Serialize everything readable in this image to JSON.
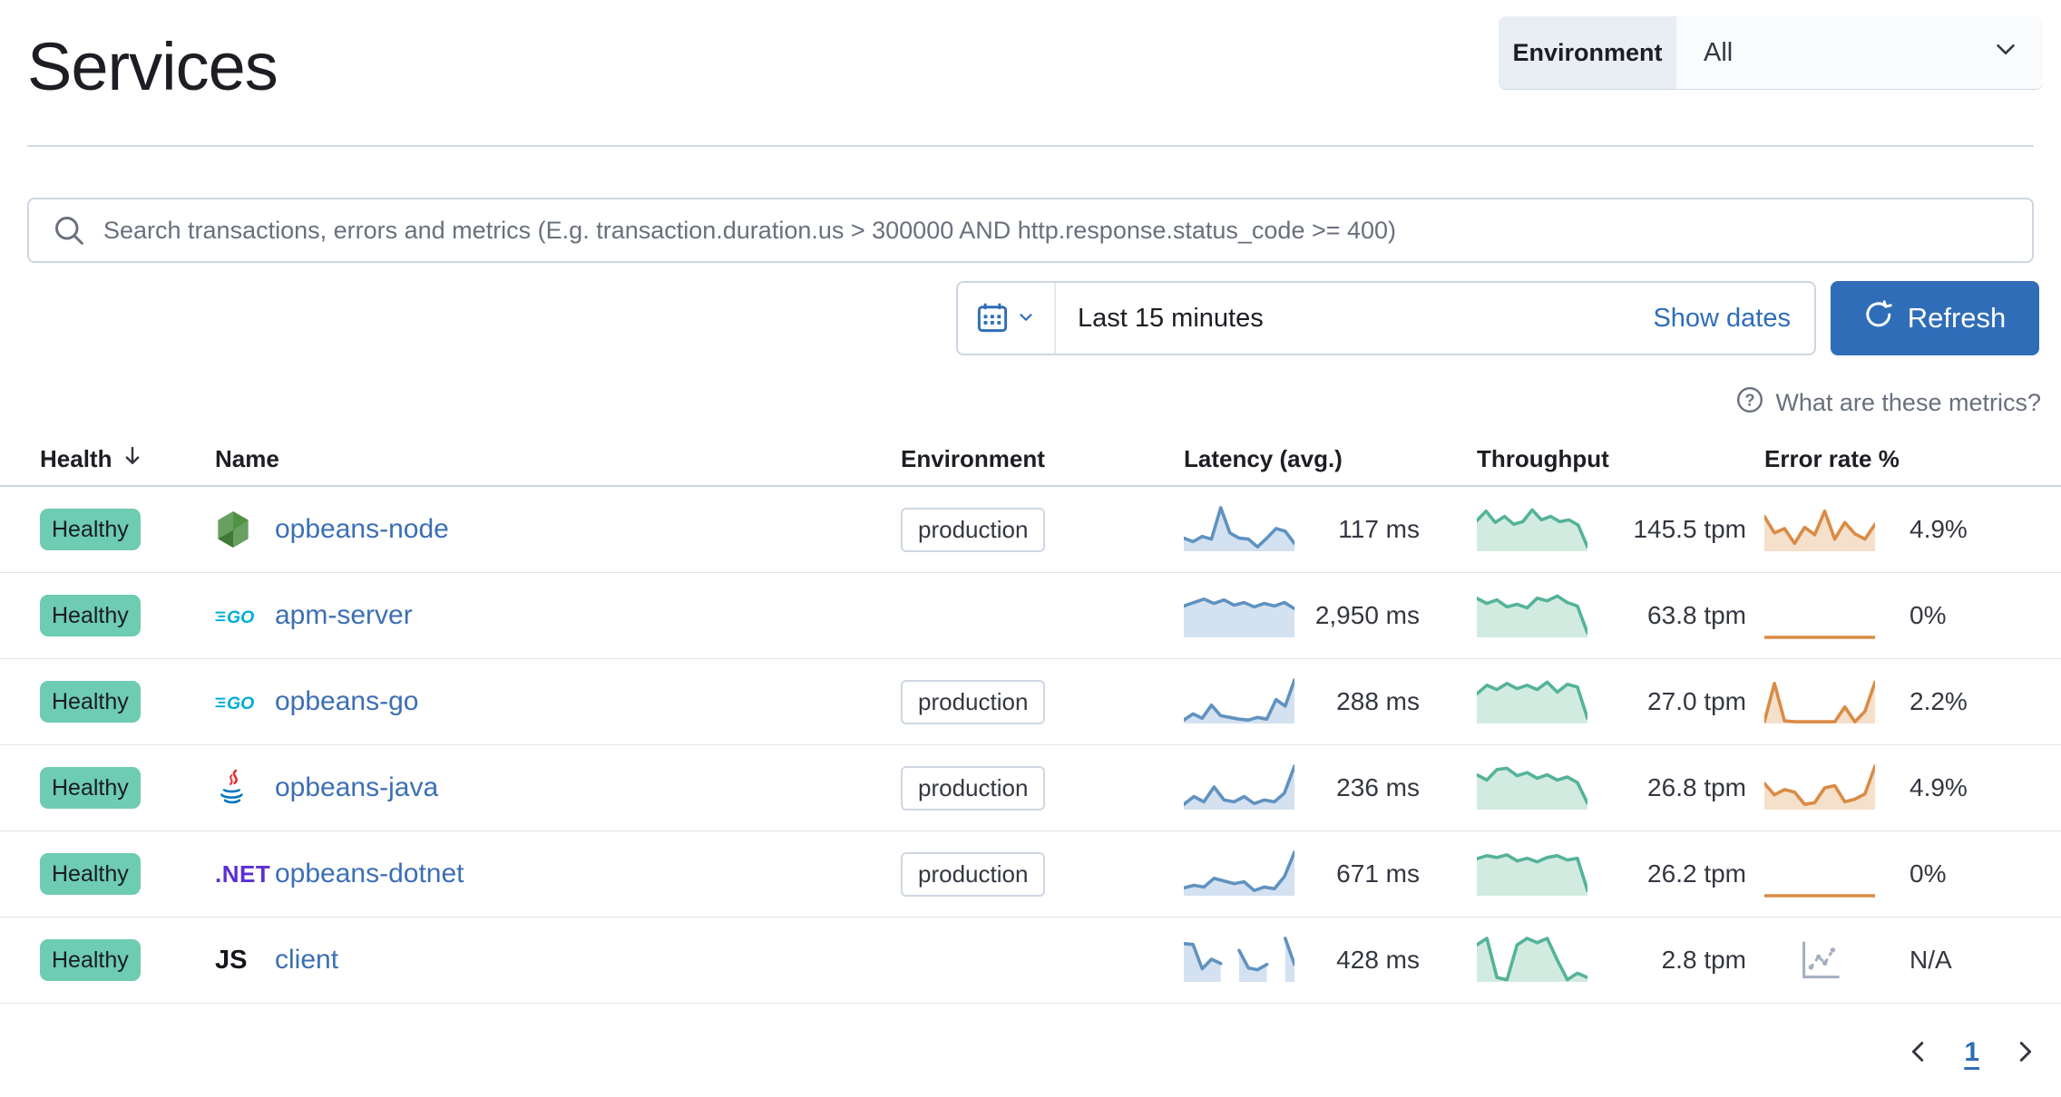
{
  "page": {
    "title": "Services"
  },
  "environment_filter": {
    "label": "Environment",
    "value": "All"
  },
  "search": {
    "placeholder": "Search transactions, errors and metrics (E.g. transaction.duration.us > 300000 AND http.response.status_code >= 400)"
  },
  "datepicker": {
    "value": "Last 15 minutes",
    "show_dates_label": "Show dates",
    "refresh_label": "Refresh"
  },
  "metrics_help": {
    "label": "What are these metrics?"
  },
  "table": {
    "columns": [
      "Health",
      "Name",
      "Environment",
      "Latency (avg.)",
      "Throughput",
      "Error rate %"
    ],
    "sorted_by": "Health",
    "sort_direction": "desc",
    "rows": [
      {
        "health": "Healthy",
        "icon": "nodejs",
        "name": "opbeans-node",
        "environment": "production",
        "latency": {
          "value": "117 ms",
          "spark": [
            0.3,
            0.22,
            0.34,
            0.28,
            1.0,
            0.42,
            0.3,
            0.28,
            0.1,
            0.3,
            0.52,
            0.46,
            0.18
          ]
        },
        "throughput": {
          "value": "145.5 tpm",
          "spark": [
            0.7,
            0.92,
            0.66,
            0.8,
            0.62,
            0.68,
            0.95,
            0.72,
            0.8,
            0.68,
            0.72,
            0.6,
            0.1
          ]
        },
        "error_rate": {
          "value": "4.9%",
          "spark": [
            0.8,
            0.42,
            0.52,
            0.18,
            0.55,
            0.38,
            0.92,
            0.28,
            0.66,
            0.4,
            0.28,
            0.62
          ]
        }
      },
      {
        "health": "Healthy",
        "icon": "go",
        "name": "apm-server",
        "environment": "",
        "latency": {
          "value": "2,950 ms",
          "spark": [
            0.72,
            0.8,
            0.88,
            0.78,
            0.86,
            0.74,
            0.8,
            0.7,
            0.78,
            0.72,
            0.8,
            0.66
          ]
        },
        "throughput": {
          "value": "63.8 tpm",
          "spark": [
            0.9,
            0.78,
            0.86,
            0.7,
            0.76,
            0.68,
            0.9,
            0.84,
            0.95,
            0.8,
            0.72,
            0.1
          ]
        },
        "error_rate": {
          "value": "0%",
          "spark": [
            0,
            0,
            0,
            0,
            0,
            0,
            0,
            0,
            0,
            0,
            0,
            0
          ]
        }
      },
      {
        "health": "Healthy",
        "icon": "go",
        "name": "opbeans-go",
        "environment": "production",
        "latency": {
          "value": "288 ms",
          "spark": [
            0.08,
            0.22,
            0.12,
            0.42,
            0.18,
            0.14,
            0.1,
            0.08,
            0.14,
            0.1,
            0.55,
            0.4,
            1.0
          ]
        },
        "throughput": {
          "value": "27.0 tpm",
          "spark": [
            0.68,
            0.88,
            0.78,
            0.92,
            0.8,
            0.88,
            0.78,
            0.95,
            0.72,
            0.9,
            0.84,
            0.12
          ]
        },
        "error_rate": {
          "value": "2.2%",
          "spark": [
            0.04,
            0.92,
            0.06,
            0.04,
            0.04,
            0.04,
            0.04,
            0.04,
            0.38,
            0.04,
            0.28,
            0.95
          ]
        }
      },
      {
        "health": "Healthy",
        "icon": "java",
        "name": "opbeans-java",
        "environment": "production",
        "latency": {
          "value": "236 ms",
          "spark": [
            0.12,
            0.3,
            0.18,
            0.52,
            0.22,
            0.18,
            0.3,
            0.14,
            0.22,
            0.18,
            0.38,
            1.0
          ]
        },
        "throughput": {
          "value": "26.8 tpm",
          "spark": [
            0.8,
            0.68,
            0.92,
            0.95,
            0.78,
            0.85,
            0.72,
            0.8,
            0.68,
            0.75,
            0.62,
            0.15
          ]
        },
        "error_rate": {
          "value": "4.9%",
          "spark": [
            0.6,
            0.34,
            0.46,
            0.4,
            0.12,
            0.16,
            0.5,
            0.55,
            0.18,
            0.24,
            0.36,
            1.0
          ]
        }
      },
      {
        "health": "Healthy",
        "icon": "dotnet",
        "name": "opbeans-dotnet",
        "environment": "production",
        "latency": {
          "value": "671 ms",
          "spark": [
            0.18,
            0.24,
            0.2,
            0.4,
            0.34,
            0.28,
            0.32,
            0.12,
            0.2,
            0.16,
            0.44,
            1.0
          ]
        },
        "throughput": {
          "value": "26.2 tpm",
          "spark": [
            0.85,
            0.92,
            0.88,
            0.94,
            0.8,
            0.86,
            0.78,
            0.88,
            0.92,
            0.82,
            0.86,
            0.12
          ]
        },
        "error_rate": {
          "value": "0%",
          "spark": [
            0,
            0,
            0,
            0,
            0,
            0,
            0,
            0,
            0,
            0,
            0,
            0
          ]
        }
      },
      {
        "health": "Healthy",
        "icon": "js",
        "name": "client",
        "environment": "",
        "latency": {
          "value": "428 ms",
          "spark": [
            0.88,
            0.86,
            0.3,
            0.52,
            0.42,
            null,
            0.72,
            0.32,
            0.28,
            0.4,
            null,
            1.0,
            0.4
          ]
        },
        "throughput": {
          "value": "2.8 tpm",
          "spark": [
            0.85,
            1.0,
            0.1,
            0.05,
            0.85,
            1.0,
            0.9,
            1.0,
            0.5,
            0.05,
            0.2,
            0.1
          ]
        },
        "error_rate": {
          "value": "N/A",
          "spark": "na"
        }
      }
    ]
  },
  "pagination": {
    "current_page": "1"
  },
  "colors": {
    "primary_blue": "#2f6db8",
    "link_blue": "#3c6fb5",
    "health_badge_bg": "#6dccb1",
    "latency_stroke": "#6092c0",
    "latency_fill": "#d4e1f1",
    "throughput_stroke": "#54b399",
    "throughput_fill": "#d2ebe1",
    "error_stroke": "#da8b45",
    "error_fill": "#f5e0cb"
  }
}
